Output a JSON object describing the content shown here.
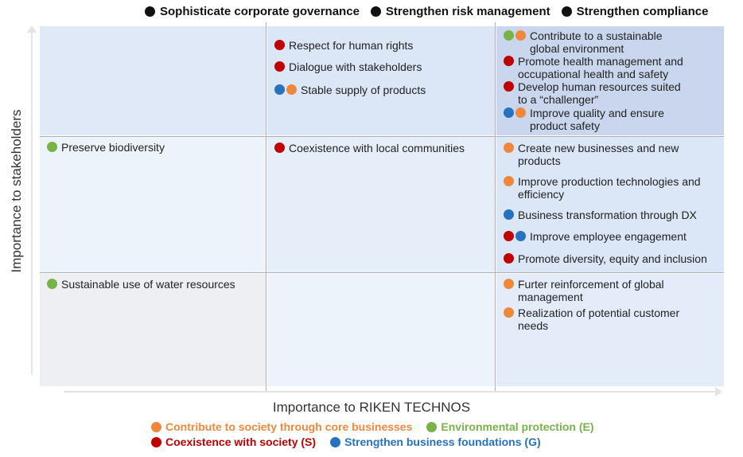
{
  "colors": {
    "core": "#f0883c",
    "environment": "#78b348",
    "society": "#c00000",
    "governance": "#2672be",
    "black": "#111111"
  },
  "top_legend": [
    {
      "label": "Sophisticate corporate governance",
      "color": "#111111"
    },
    {
      "label": "Strengthen risk management",
      "color": "#111111"
    },
    {
      "label": "Strengthen compliance",
      "color": "#111111"
    }
  ],
  "axes": {
    "y_label": "Importance to stakeholders",
    "x_label": "Importance to RIKEN TECHNOS"
  },
  "cells": [
    {
      "row": 0,
      "col": 0,
      "bg": "#dfe9f7",
      "entries": []
    },
    {
      "row": 0,
      "col": 1,
      "bg": "#dbe6f6",
      "entries": [
        {
          "dots": [
            "#c00000"
          ],
          "text": "Respect for human rights"
        },
        {
          "dots": [
            "#c00000"
          ],
          "text": "Dialogue with stakeholders"
        },
        {
          "dots": [
            "#2672be",
            "#f0883c"
          ],
          "text": "Stable supply of products"
        }
      ]
    },
    {
      "row": 0,
      "col": 2,
      "bg": "#c9d6ee",
      "entries": [
        {
          "dots": [
            "#78b348",
            "#f0883c"
          ],
          "text": "Contribute to a sustainable\n  global environment"
        },
        {
          "dots": [
            "#c00000"
          ],
          "text": "Promote health management and\noccupational health and safety"
        },
        {
          "dots": [
            "#c00000"
          ],
          "text": "Develop human resources suited\nto a “challenger”"
        },
        {
          "dots": [
            "#2672be",
            "#f0883c"
          ],
          "text": "Improve quality and ensure\n  product safety"
        }
      ]
    },
    {
      "row": 1,
      "col": 0,
      "bg": "#edf3fb",
      "entries": [
        {
          "dots": [
            "#78b348"
          ],
          "text": "Preserve biodiversity"
        }
      ]
    },
    {
      "row": 1,
      "col": 1,
      "bg": "#e6eef9",
      "entries": [
        {
          "dots": [
            "#c00000"
          ],
          "text": "Coexistence with local communities"
        }
      ]
    },
    {
      "row": 1,
      "col": 2,
      "bg": "#dbe6f6",
      "entries": [
        {
          "dots": [
            "#f0883c"
          ],
          "text": "Create new businesses and new\nproducts"
        },
        {
          "dots": [
            "#f0883c"
          ],
          "text": "Improve production technologies and\nefficiency"
        },
        {
          "dots": [
            "#2672be"
          ],
          "text": "Business transformation through DX"
        },
        {
          "dots": [
            "#c00000",
            "#2672be"
          ],
          "text": "Improve employee engagement"
        },
        {
          "dots": [
            "#c00000"
          ],
          "text": "Promote diversity, equity and inclusion"
        }
      ]
    },
    {
      "row": 2,
      "col": 0,
      "bg": "#eeeff2",
      "entries": [
        {
          "dots": [
            "#78b348"
          ],
          "text": "Sustainable use of water resources"
        }
      ]
    },
    {
      "row": 2,
      "col": 1,
      "bg": "#edf3fb",
      "entries": []
    },
    {
      "row": 2,
      "col": 2,
      "bg": "#e3ecf8",
      "entries": [
        {
          "dots": [
            "#f0883c"
          ],
          "text": "Furter reinforcement of global\nmanagement"
        },
        {
          "dots": [
            "#f0883c"
          ],
          "text": "Realization of potential customer\nneeds"
        }
      ]
    }
  ],
  "bottom_legend": [
    [
      {
        "label": "Contribute to society through core businesses",
        "color": "#f0883c"
      },
      {
        "label": "Environmental protection (E)",
        "color": "#78b348"
      }
    ],
    [
      {
        "label": "Coexistence with society (S)",
        "color": "#c00000"
      },
      {
        "label": "Strengthen business foundations (G)",
        "color": "#2672be"
      }
    ]
  ]
}
